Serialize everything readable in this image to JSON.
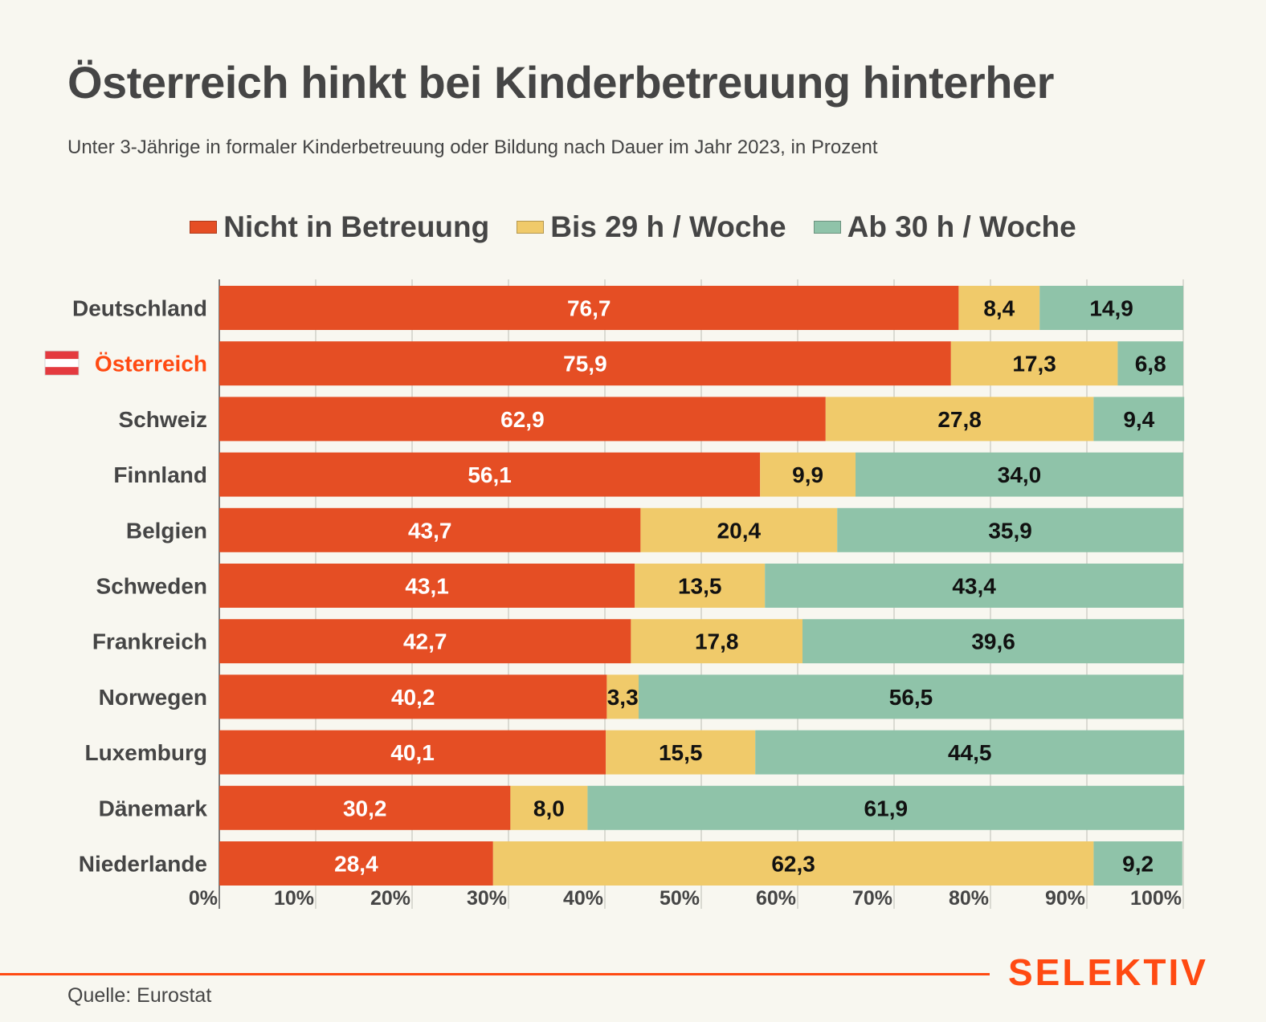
{
  "header": {
    "title": "Österreich hinkt bei Kinderbetreuung hinterher",
    "subtitle": "Unter 3-Jährige in formaler Kinderbetreuung oder Bildung nach Dauer im Jahr 2023, in Prozent"
  },
  "footer": {
    "source": "Quelle: Eurostat",
    "brand": "SELEKTIV"
  },
  "colors": {
    "background": "#F8F7F0",
    "text": "#454545",
    "highlight": "#FF4A12",
    "brand": "#FF4A12"
  },
  "chart_data": {
    "type": "bar",
    "orientation": "horizontal",
    "stacked": true,
    "title": "Österreich hinkt bei Kinderbetreuung hinterher",
    "subtitle": "Unter 3-Jährige in formaler Kinderbetreuung oder Bildung nach Dauer im Jahr 2023, in Prozent",
    "xlabel": "",
    "ylabel": "",
    "xlim": [
      0,
      100
    ],
    "xticks": [
      0,
      10,
      20,
      30,
      40,
      50,
      60,
      70,
      80,
      90,
      100
    ],
    "xtick_labels": [
      "0%",
      "10%",
      "20%",
      "30%",
      "40%",
      "50%",
      "60%",
      "70%",
      "80%",
      "90%",
      "100%"
    ],
    "grid": true,
    "legend_position": "top-center",
    "categories": [
      "Deutschland",
      "Österreich",
      "Schweiz",
      "Finnland",
      "Belgien",
      "Schweden",
      "Frankreich",
      "Norwegen",
      "Luxemburg",
      "Dänemark",
      "Niederlande"
    ],
    "highlight_category": "Österreich",
    "highlight_icon": "austria-flag-icon",
    "series": [
      {
        "name": "Nicht in Betreuung",
        "color": "#E54E24",
        "label_color": "#FFFFFF",
        "values": [
          76.7,
          75.9,
          62.9,
          56.1,
          43.7,
          43.1,
          42.7,
          40.2,
          40.1,
          30.2,
          28.4
        ],
        "labels": [
          "76,7",
          "75,9",
          "62,9",
          "56,1",
          "43,7",
          "43,1",
          "42,7",
          "40,2",
          "40,1",
          "30,2",
          "28,4"
        ]
      },
      {
        "name": "Bis 29 h / Woche",
        "color": "#F0CA6A",
        "label_color": "#111111",
        "values": [
          8.4,
          17.3,
          27.8,
          9.9,
          20.4,
          13.5,
          17.8,
          3.3,
          15.5,
          8.0,
          62.3
        ],
        "labels": [
          "8,4",
          "17,3",
          "27,8",
          "9,9",
          "20,4",
          "13,5",
          "17,8",
          "3,3",
          "15,5",
          "8,0",
          "62,3"
        ]
      },
      {
        "name": "Ab 30 h / Woche",
        "color": "#8FC3A9",
        "label_color": "#111111",
        "values": [
          14.9,
          6.8,
          9.4,
          34.0,
          35.9,
          43.4,
          39.6,
          56.5,
          44.5,
          61.9,
          9.2
        ],
        "labels": [
          "14,9",
          "6,8",
          "9,4",
          "34,0",
          "35,9",
          "43,4",
          "39,6",
          "56,5",
          "44,5",
          "61,9",
          "9,2"
        ]
      }
    ]
  }
}
